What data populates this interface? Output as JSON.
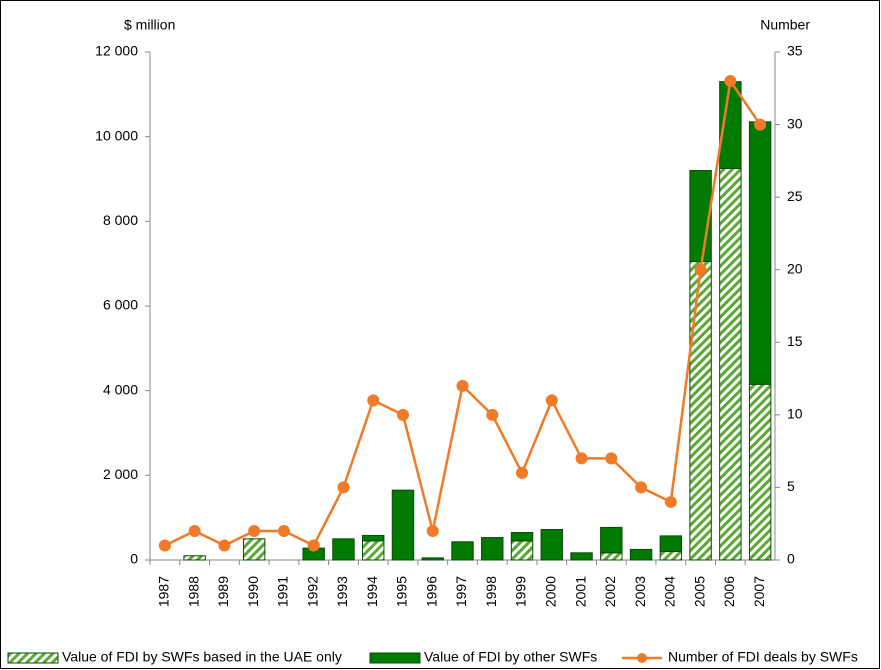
{
  "chart_data": {
    "type": "bar",
    "y_label": "$ million",
    "y2_label": "Number",
    "categories": [
      "1987",
      "1988",
      "1989",
      "1990",
      "1991",
      "1992",
      "1993",
      "1994",
      "1995",
      "1996",
      "1997",
      "1998",
      "1999",
      "2000",
      "2001",
      "2002",
      "2003",
      "2004",
      "2005",
      "2006",
      "2007"
    ],
    "series": [
      {
        "name": "Value of FDI by SWFs based in the UAE only",
        "color": "#5aa832",
        "pattern": "hatch",
        "values": [
          0,
          100,
          0,
          500,
          0,
          0,
          0,
          450,
          0,
          0,
          0,
          0,
          450,
          0,
          0,
          170,
          0,
          200,
          7050,
          9250,
          4150
        ]
      },
      {
        "name": "Value of FDI by other SWFs",
        "color": "#007a00",
        "values": [
          0,
          0,
          0,
          0,
          0,
          280,
          500,
          130,
          1650,
          50,
          430,
          530,
          200,
          720,
          170,
          600,
          250,
          370,
          2150,
          2050,
          6200
        ]
      },
      {
        "name": "Number of FDI deals by SWFs",
        "color": "#f07a28",
        "type": "line",
        "axis": "y2",
        "values": [
          1,
          2,
          1,
          2,
          2,
          1,
          5,
          11,
          10,
          2,
          12,
          10,
          6,
          11,
          7,
          7,
          5,
          4,
          20,
          33,
          30
        ]
      }
    ],
    "stacked": true,
    "ylim": [
      0,
      12000
    ],
    "yticks": [
      0,
      {
        "value": 2000,
        "label": "2 000"
      },
      {
        "value": 4000,
        "label": "4 000"
      },
      {
        "value": 6000,
        "label": "6 000"
      },
      {
        "value": 8000,
        "label": "8 000"
      },
      {
        "value": 10000,
        "label": "10 000"
      },
      {
        "value": 12000,
        "label": "12 000"
      }
    ],
    "y2lim": [
      0,
      35
    ],
    "y2ticks": [
      0,
      5,
      10,
      15,
      20,
      25,
      30,
      35
    ],
    "grid": false,
    "legend": "bottom"
  }
}
